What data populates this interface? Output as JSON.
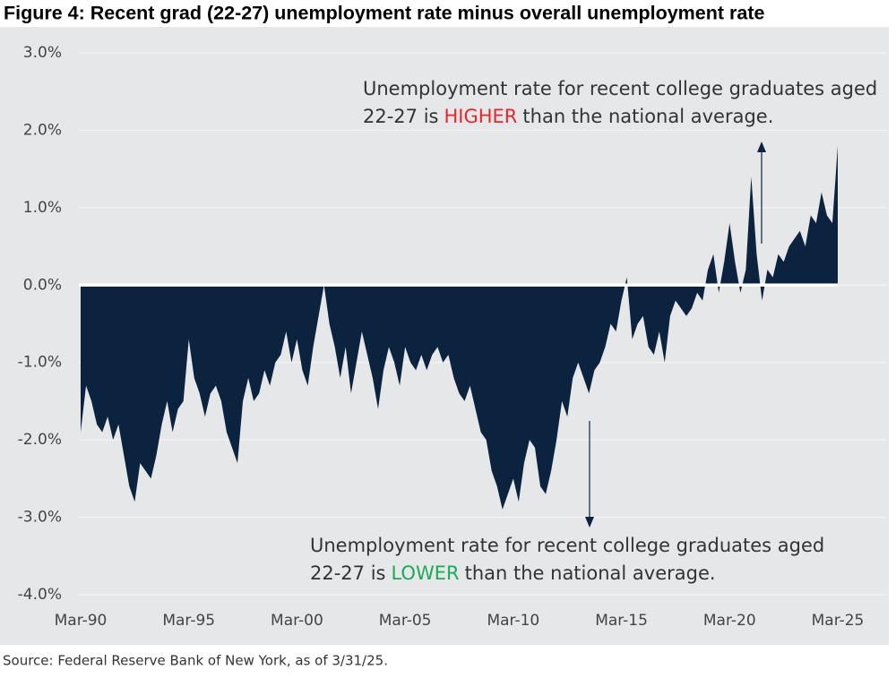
{
  "chart_data": {
    "type": "area",
    "title": "Figure 4: Recent grad (22-27) unemployment rate minus overall unemployment rate",
    "source": "Source: Federal Reserve Bank of New York, as of 3/31/25.",
    "x": [
      "Mar-90",
      "Jun-90",
      "Sep-90",
      "Dec-90",
      "Mar-91",
      "Jun-91",
      "Sep-91",
      "Dec-91",
      "Mar-92",
      "Jun-92",
      "Sep-92",
      "Dec-92",
      "Mar-93",
      "Jun-93",
      "Sep-93",
      "Dec-93",
      "Mar-94",
      "Jun-94",
      "Sep-94",
      "Dec-94",
      "Mar-95",
      "Jun-95",
      "Sep-95",
      "Dec-95",
      "Mar-96",
      "Jun-96",
      "Sep-96",
      "Dec-96",
      "Mar-97",
      "Jun-97",
      "Sep-97",
      "Dec-97",
      "Mar-98",
      "Jun-98",
      "Sep-98",
      "Dec-98",
      "Mar-99",
      "Jun-99",
      "Sep-99",
      "Dec-99",
      "Mar-00",
      "Jun-00",
      "Sep-00",
      "Dec-00",
      "Mar-01",
      "Jun-01",
      "Sep-01",
      "Dec-01",
      "Mar-02",
      "Jun-02",
      "Sep-02",
      "Dec-02",
      "Mar-03",
      "Jun-03",
      "Sep-03",
      "Dec-03",
      "Mar-04",
      "Jun-04",
      "Sep-04",
      "Dec-04",
      "Mar-05",
      "Jun-05",
      "Sep-05",
      "Dec-05",
      "Mar-06",
      "Jun-06",
      "Sep-06",
      "Dec-06",
      "Mar-07",
      "Jun-07",
      "Sep-07",
      "Dec-07",
      "Mar-08",
      "Jun-08",
      "Sep-08",
      "Dec-08",
      "Mar-09",
      "Jun-09",
      "Sep-09",
      "Dec-09",
      "Mar-10",
      "Jun-10",
      "Sep-10",
      "Dec-10",
      "Mar-11",
      "Jun-11",
      "Sep-11",
      "Dec-11",
      "Mar-12",
      "Jun-12",
      "Sep-12",
      "Dec-12",
      "Mar-13",
      "Jun-13",
      "Sep-13",
      "Dec-13",
      "Mar-14",
      "Jun-14",
      "Sep-14",
      "Dec-14",
      "Mar-15",
      "Jun-15",
      "Sep-15",
      "Dec-15",
      "Mar-16",
      "Jun-16",
      "Sep-16",
      "Dec-16",
      "Mar-17",
      "Jun-17",
      "Sep-17",
      "Dec-17",
      "Mar-18",
      "Jun-18",
      "Sep-18",
      "Dec-18",
      "Mar-19",
      "Jun-19",
      "Sep-19",
      "Dec-19",
      "Mar-20",
      "Jun-20",
      "Sep-20",
      "Dec-20",
      "Mar-21",
      "Jun-21",
      "Sep-21",
      "Dec-21",
      "Mar-22",
      "Jun-22",
      "Sep-22",
      "Dec-22",
      "Mar-23",
      "Jun-23",
      "Sep-23",
      "Dec-23",
      "Mar-24",
      "Jun-24",
      "Sep-24",
      "Dec-24",
      "Mar-25"
    ],
    "values": [
      -1.9,
      -1.3,
      -1.5,
      -1.8,
      -1.9,
      -1.7,
      -2.0,
      -1.8,
      -2.2,
      -2.6,
      -2.8,
      -2.3,
      -2.4,
      -2.5,
      -2.2,
      -1.8,
      -1.5,
      -1.9,
      -1.6,
      -1.5,
      -0.7,
      -1.2,
      -1.4,
      -1.7,
      -1.4,
      -1.3,
      -1.5,
      -1.9,
      -2.1,
      -2.3,
      -1.5,
      -1.2,
      -1.5,
      -1.4,
      -1.1,
      -1.3,
      -1.0,
      -0.9,
      -0.6,
      -1.0,
      -0.7,
      -1.1,
      -1.3,
      -0.8,
      -0.4,
      0.0,
      -0.5,
      -0.8,
      -1.2,
      -0.8,
      -1.4,
      -1.0,
      -0.6,
      -0.9,
      -1.2,
      -1.6,
      -1.1,
      -0.8,
      -1.0,
      -1.3,
      -0.8,
      -1.0,
      -1.1,
      -0.9,
      -1.1,
      -0.9,
      -0.8,
      -1.0,
      -0.9,
      -1.2,
      -1.4,
      -1.5,
      -1.3,
      -1.6,
      -1.9,
      -2.0,
      -2.4,
      -2.6,
      -2.9,
      -2.7,
      -2.5,
      -2.8,
      -2.3,
      -2.0,
      -2.1,
      -2.6,
      -2.7,
      -2.4,
      -2.0,
      -1.5,
      -1.7,
      -1.2,
      -1.0,
      -1.2,
      -1.4,
      -1.1,
      -1.0,
      -0.8,
      -0.5,
      -0.6,
      -0.2,
      0.1,
      -0.7,
      -0.5,
      -0.4,
      -0.8,
      -0.9,
      -0.6,
      -1.0,
      -0.4,
      -0.2,
      -0.3,
      -0.4,
      -0.3,
      -0.1,
      -0.2,
      0.2,
      0.4,
      -0.1,
      0.3,
      0.8,
      0.3,
      -0.1,
      0.2,
      1.4,
      0.4,
      -0.2,
      0.2,
      0.1,
      0.4,
      0.3,
      0.5,
      0.6,
      0.7,
      0.5,
      0.9,
      0.8,
      1.2,
      0.9,
      0.8,
      1.8
    ],
    "color": "#0c2340",
    "ylim": [
      -4,
      3
    ],
    "yticks": [
      {
        "value": -4,
        "label": "-4.0%"
      },
      {
        "value": -3,
        "label": "-3.0%"
      },
      {
        "value": -2,
        "label": "-2.0%"
      },
      {
        "value": -1,
        "label": "-1.0%"
      },
      {
        "value": 0,
        "label": "0.0%"
      },
      {
        "value": 1,
        "label": "1.0%"
      },
      {
        "value": 2,
        "label": "2.0%"
      },
      {
        "value": 3,
        "label": "3.0%"
      }
    ],
    "xtick_every": 20,
    "grid": true,
    "annotation_high": {
      "line1": "Unemployment rate for recent college graduates aged",
      "pre": "22-27 is",
      "emphasis": "HIGHER",
      "post": "than the national average.",
      "emphasis_color": "#e8262b"
    },
    "annotation_low": {
      "line1": "Unemployment rate for recent college graduates aged",
      "pre": "22-27 is",
      "emphasis": "LOWER",
      "post": "than the national average.",
      "emphasis_color": "#1fa85a"
    }
  }
}
